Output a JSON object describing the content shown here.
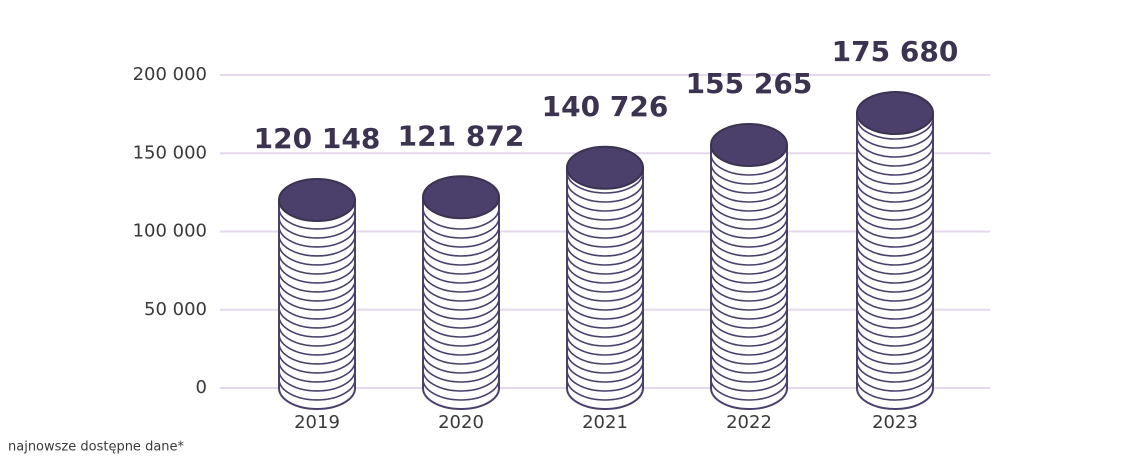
{
  "chart_data": {
    "type": "bar",
    "categories": [
      "2019",
      "2020",
      "2021",
      "2022",
      "2023"
    ],
    "values": [
      120148,
      121872,
      140726,
      155265,
      175680
    ],
    "value_labels": [
      "120 148",
      "121 872",
      "140 726",
      "155 265",
      "175 680"
    ],
    "color": "#4b3f6c",
    "ylim": [
      0,
      200000
    ],
    "yticks": [
      0,
      {
        "value": 50000,
        "label": "50 000"
      },
      {
        "value": 100000,
        "label": "100 000"
      },
      {
        "value": 150000,
        "label": "150 000"
      },
      {
        "value": 200000,
        "label": "200 000"
      }
    ],
    "grid": true,
    "footnote": "najnowsze dostępne dane*"
  }
}
